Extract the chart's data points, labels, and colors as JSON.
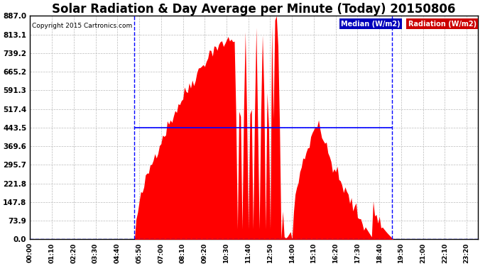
{
  "title": "Solar Radiation & Day Average per Minute (Today) 20150806",
  "copyright": "Copyright 2015 Cartronics.com",
  "ymin": 0.0,
  "ymax": 887.0,
  "yticks": [
    0.0,
    73.9,
    147.8,
    221.8,
    295.7,
    369.6,
    443.5,
    517.4,
    591.3,
    665.2,
    739.2,
    813.1,
    887.0
  ],
  "ytick_labels": [
    "0.0",
    "73.9",
    "147.8",
    "221.8",
    "295.7",
    "369.6",
    "443.5",
    "517.4",
    "591.3",
    "665.2",
    "739.2",
    "813.1",
    "887.0"
  ],
  "xmin": 0,
  "xmax": 287,
  "sunrise_idx": 67,
  "sunset_idx": 232,
  "median_value": 443.5,
  "radiation_color": "#FF0000",
  "median_color": "#0000FF",
  "background_color": "#FFFFFF",
  "plot_bg_color": "#FFFFFF",
  "grid_color": "#AAAAAA",
  "title_fontsize": 12,
  "legend_median_label": "Median (W/m2)",
  "legend_radiation_label": "Radiation (W/m2)",
  "median_bg": "#0000CC",
  "radiation_legend_bg": "#CC0000"
}
